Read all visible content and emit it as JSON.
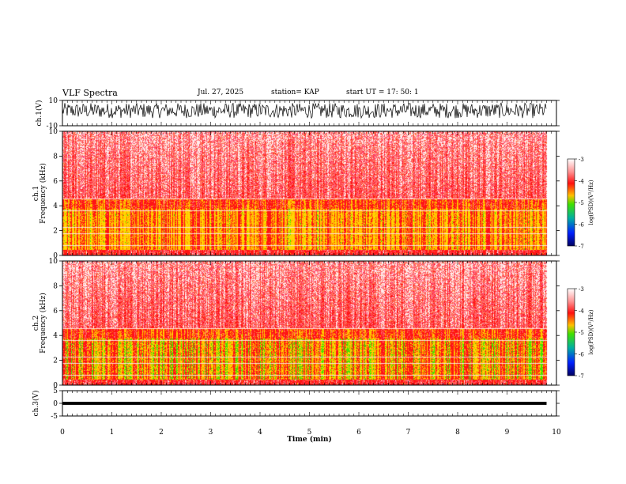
{
  "header": {
    "title": "VLF Spectra",
    "date": "Jul. 27, 2025",
    "station": "station= KAP",
    "start": "start  UT  =   17: 50: 1"
  },
  "chart_data": [
    {
      "type": "line",
      "name": "ch1-waveform",
      "ylabel": "ch.1(V)",
      "ylim": [
        -10,
        10
      ],
      "ytick_labels": [
        "10",
        "-10"
      ],
      "xlim": [
        0,
        10
      ],
      "extent_min": 9.8,
      "description_values": {
        "baseline": 2,
        "amplitude": 6
      }
    },
    {
      "type": "heatmap",
      "name": "ch1-spectrogram",
      "ylabel": "Frequency (kHz)",
      "channel_label": "ch.1",
      "ylim": [
        0,
        10
      ],
      "ytick_labels": [
        "0",
        "2",
        "4",
        "6",
        "8",
        "10"
      ],
      "xlim": [
        0,
        10
      ],
      "extent_min": 9.8,
      "colorbar": {
        "label": "log(PSD)(V²/Hz)",
        "range": [
          -7,
          -3
        ],
        "tick_labels": [
          "-3",
          "-4",
          "-5",
          "-6",
          "-7"
        ]
      }
    },
    {
      "type": "heatmap",
      "name": "ch2-spectrogram",
      "ylabel": "Frequency (kHz)",
      "channel_label": "ch.2",
      "ylim": [
        0,
        10
      ],
      "ytick_labels": [
        "0",
        "2",
        "4",
        "6",
        "8",
        "10"
      ],
      "xlim": [
        0,
        10
      ],
      "extent_min": 9.8,
      "colorbar": {
        "label": "log(PSD)(V²/Hz)",
        "range": [
          -7,
          -3
        ],
        "tick_labels": [
          "-3",
          "-4",
          "-5",
          "-6",
          "-7"
        ]
      }
    },
    {
      "type": "line",
      "name": "ch3-waveform",
      "ylabel": "ch.3(V)",
      "ylim": [
        -5,
        5
      ],
      "ytick_labels": [
        "5",
        "0",
        "-5"
      ],
      "xlim": [
        0,
        10
      ],
      "extent_min": 9.8,
      "description_values": {
        "baseline": 0,
        "amplitude": 0.6
      }
    }
  ],
  "xaxis": {
    "label": "Time (min)",
    "tick_labels": [
      "0",
      "1",
      "2",
      "3",
      "4",
      "5",
      "6",
      "7",
      "8",
      "9",
      "10"
    ]
  },
  "colors": {
    "spectro_base": "#ff2020",
    "spectro_band": "#ffd000",
    "spectro_green": "#40e000",
    "colorbar_top": "#ffffff",
    "colorbar_bottom": "#0000a0"
  }
}
